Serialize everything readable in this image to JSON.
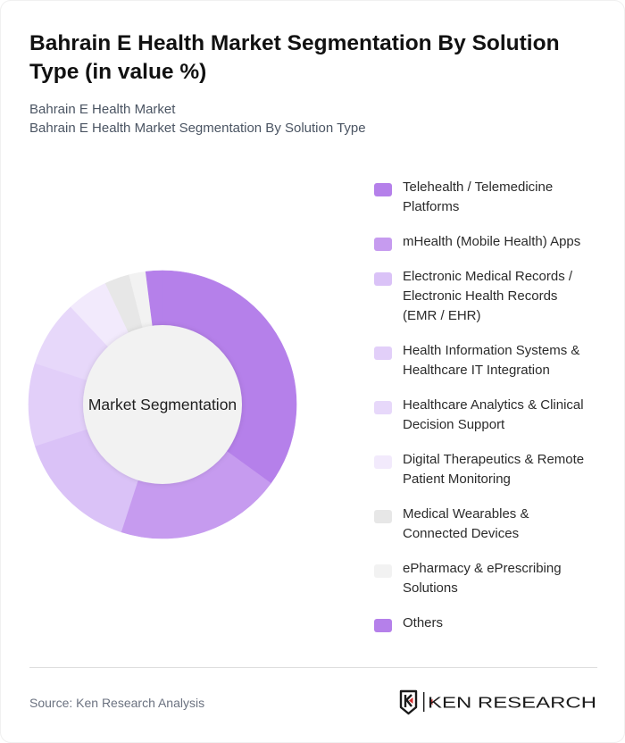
{
  "header": {
    "title": "Bahrain E Health Market Segmentation By Solution Type (in value %)",
    "subtitle_line_1": "Bahrain E Health Market",
    "subtitle_line_2": "Bahrain E Health Market Segmentation By Solution Type"
  },
  "chart_data": {
    "type": "pie",
    "variant": "donut",
    "title": "Bahrain E Health Market Segmentation By Solution Type (in value %)",
    "center_label": "Market Segmentation",
    "unit": "%",
    "start_angle_deg": 0,
    "direction": "clockwise",
    "legend_position": "right",
    "categories": [
      "Telehealth / Telemedicine Platforms",
      "mHealth (Mobile Health) Apps",
      "Electronic Medical Records / Electronic Health Records (EMR / EHR)",
      "Health Information Systems & Healthcare IT Integration",
      "Healthcare Analytics & Clinical Decision Support",
      "Digital Therapeutics & Remote Patient Monitoring",
      "Medical Wearables & Connected Devices",
      "ePharmacy & ePrescribing Solutions",
      "Others"
    ],
    "values": [
      35,
      20,
      15,
      10,
      8,
      5,
      3,
      2,
      2
    ],
    "colors": [
      "#b580ea",
      "#c69bef",
      "#dac2f7",
      "#e2cff9",
      "#e7d8fa",
      "#f2eafc",
      "#e7e7e7",
      "#f2f2f2",
      "#b580ea"
    ]
  },
  "legend": {
    "items": [
      {
        "lines": [
          "Telehealth / Telemedicine",
          "Platforms"
        ],
        "color": "#b580ea"
      },
      {
        "lines": [
          "mHealth (Mobile Health) Apps"
        ],
        "color": "#c69bef"
      },
      {
        "lines": [
          "Electronic Medical Records /",
          "Electronic Health Records",
          "(EMR / EHR)"
        ],
        "color": "#dac2f7"
      },
      {
        "lines": [
          "Health Information Systems &",
          "Healthcare IT Integration"
        ],
        "color": "#e2cff9"
      },
      {
        "lines": [
          "Healthcare Analytics & Clinical",
          "Decision Support"
        ],
        "color": "#e7d8fa"
      },
      {
        "lines": [
          "Digital Therapeutics & Remote",
          "Patient Monitoring"
        ],
        "color": "#f2eafc"
      },
      {
        "lines": [
          "Medical Wearables &",
          "Connected Devices"
        ],
        "color": "#e7e7e7"
      },
      {
        "lines": [
          "ePharmacy & ePrescribing",
          "Solutions"
        ],
        "color": "#f2f2f2"
      },
      {
        "lines": [
          "Others"
        ],
        "color": "#b580ea"
      }
    ]
  },
  "footer": {
    "source": "Source: Ken Research Analysis",
    "logo_text": "KEN RESEARCH",
    "logo_accent_color": "#d32f2f"
  }
}
